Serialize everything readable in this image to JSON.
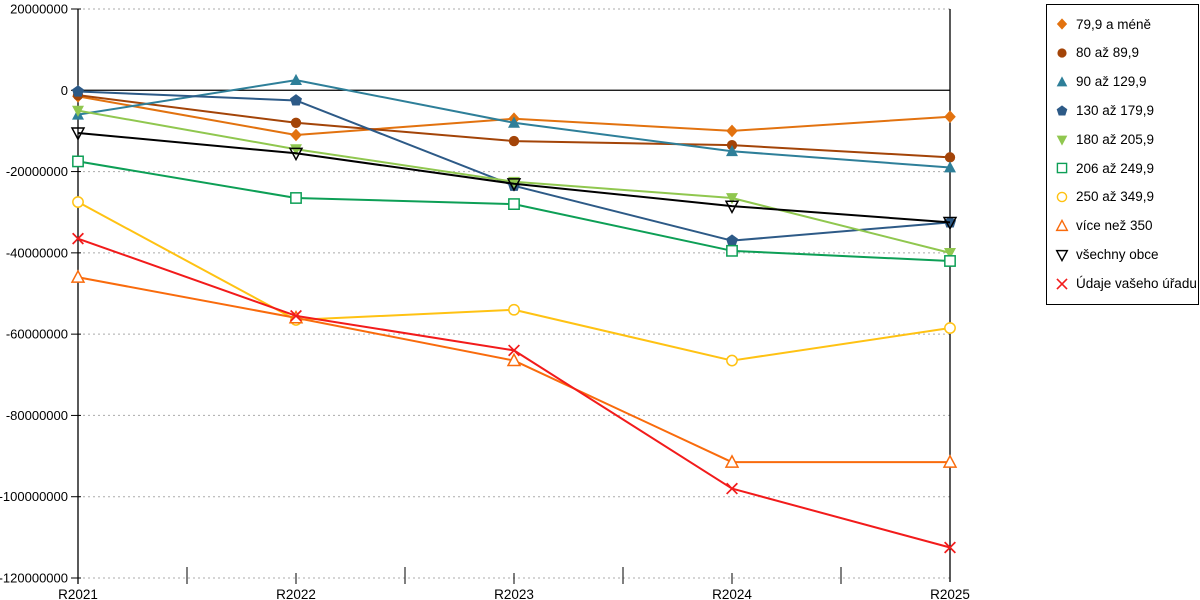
{
  "chart_data": {
    "type": "line",
    "title": "",
    "xlabel": "",
    "ylabel": "",
    "grid": "horizontal-dashed",
    "legend_position": "right",
    "x_categories": [
      "R2021",
      "R2022",
      "R2023",
      "R2024",
      "R2025"
    ],
    "y_axis": {
      "min": -120000000,
      "max": 20000000,
      "tick_step": 20000000,
      "tick_labels": [
        "20000000",
        "0",
        "-20000000",
        "-40000000",
        "-60000000",
        "-80000000",
        "-100000000",
        "-120000000"
      ]
    },
    "colors": {
      "gridline": "#ababab",
      "axis": "#000000",
      "background": "#ffffff"
    },
    "series": [
      {
        "name": "79,9 a méně",
        "color": "#E2720F",
        "marker": "diamond",
        "marker_fill": "filled",
        "values": [
          -1500000,
          -11000000,
          -7000000,
          -10000000,
          -6500000
        ]
      },
      {
        "name": "80 až 89,9",
        "color": "#A34408",
        "marker": "circle",
        "marker_fill": "filled",
        "values": [
          -1200000,
          -8000000,
          -12500000,
          -13500000,
          -16500000
        ]
      },
      {
        "name": "90 až 129,9",
        "color": "#2E7F99",
        "marker": "triangle-up",
        "marker_fill": "filled",
        "values": [
          -6000000,
          2500000,
          -8000000,
          -15000000,
          -19000000
        ]
      },
      {
        "name": "130 až 179,9",
        "color": "#2D5A87",
        "marker": "pentagon",
        "marker_fill": "filled",
        "values": [
          -300000,
          -2500000,
          -23500000,
          -37000000,
          -32500000
        ]
      },
      {
        "name": "180 až 205,9",
        "color": "#90C74F",
        "marker": "triangle-down",
        "marker_fill": "filled",
        "values": [
          -5000000,
          -14500000,
          -22500000,
          -26500000,
          -40000000
        ]
      },
      {
        "name": "206 až 249,9",
        "color": "#0D9F56",
        "marker": "square",
        "marker_fill": "open",
        "values": [
          -17500000,
          -26500000,
          -28000000,
          -39500000,
          -42000000
        ]
      },
      {
        "name": "250 až 349,9",
        "color": "#FFC213",
        "marker": "circle",
        "marker_fill": "open",
        "values": [
          -27500000,
          -56500000,
          -54000000,
          -66500000,
          -58500000
        ]
      },
      {
        "name": "více než 350",
        "color": "#F96B0C",
        "marker": "triangle-up",
        "marker_fill": "open",
        "values": [
          -46000000,
          -56000000,
          -66500000,
          -91500000,
          -91500000
        ]
      },
      {
        "name": "všechny obce",
        "color": "#000000",
        "marker": "triangle-down",
        "marker_fill": "open",
        "values": [
          -10500000,
          -15500000,
          -23000000,
          -28500000,
          -32500000
        ]
      },
      {
        "name": "Údaje vašeho úřadu",
        "color": "#F21B1B",
        "marker": "x",
        "marker_fill": "open",
        "values": [
          -36500000,
          -55500000,
          -64000000,
          -98000000,
          -112500000
        ]
      }
    ]
  }
}
